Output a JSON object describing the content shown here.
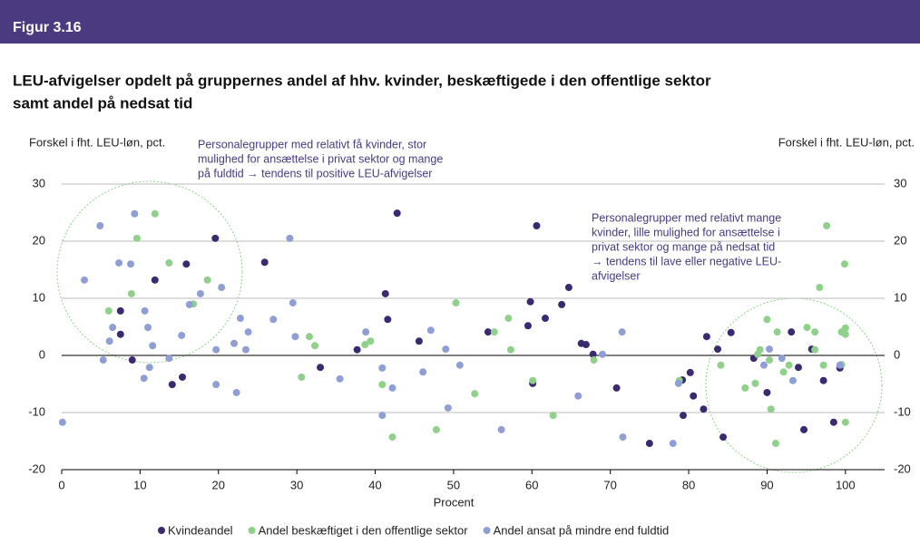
{
  "header": {
    "label": "Figur 3.16"
  },
  "chart_data": {
    "type": "scatter",
    "title": [
      "LEU-afvigelser opdelt på gruppernes andel af hhv. kvinder, beskæftigede i den offentlige sektor",
      "samt andel på nedsat tid"
    ],
    "y_label": "Forskel i fht. LEU-løn, pct.",
    "y2_label": "Forskel i fht. LEU-løn, pct.",
    "x_label": "Procent",
    "annotations": [
      [
        "Personalegrupper med relativt få kvinder, stor",
        "mulighed for ansættelse i privat sektor og mange",
        "på fuldtid → tendens til positive LEU-afvigelser"
      ],
      [
        "Personalegrupper med relativt mange",
        "kvinder, lille mulighed for ansættelse i",
        "privat sektor og mange på nedsat tid",
        "→ tendens til lave eller negative LEU-",
        "afvigelser"
      ]
    ],
    "xlim": [
      0,
      105
    ],
    "xticks": [
      0,
      10,
      20,
      30,
      40,
      50,
      60,
      70,
      80,
      90,
      100
    ],
    "ylim": [
      -20,
      30
    ],
    "yticks": [
      -20,
      -10,
      0,
      10,
      20,
      30
    ],
    "y2lim": [
      -20,
      30
    ],
    "y2ticks": [
      -20,
      -10,
      0,
      10,
      20,
      30
    ],
    "grid": true,
    "legend": "bottom",
    "series": [
      {
        "name": "Kvindeandel",
        "color": "#3b2a70",
        "x": [
          7.5,
          7.5,
          9.0,
          11.9,
          14.1,
          15.4,
          15.9,
          19.6,
          25.9,
          33,
          37.7,
          41.3,
          41.6,
          42.8,
          45.6,
          54.4,
          59.5,
          59.8,
          60.1,
          60.6,
          61.7,
          63.8,
          64.7,
          66.3,
          66.9,
          67.8,
          70.8,
          75,
          79.2,
          79.3,
          80.2,
          80.6,
          81.9,
          82.3,
          83.7,
          84.4,
          85.4,
          88.3,
          90,
          93.1,
          94,
          94.7,
          95.7,
          97.2,
          98.5,
          99.3
        ],
        "values": [
          7.8,
          3.7,
          -0.8,
          13.2,
          -5.1,
          -3.8,
          16,
          20.5,
          16.3,
          -2.1,
          1.0,
          10.8,
          6.3,
          24.9,
          2.5,
          4.1,
          5.2,
          9.4,
          -4.9,
          22.7,
          6.5,
          8.9,
          11.9,
          2.1,
          1.9,
          0.2,
          -5.7,
          -15.4,
          -4.3,
          -10.5,
          -3.0,
          -7.1,
          -9.4,
          3.3,
          1.1,
          -14.3,
          4.0,
          -0.5,
          -6.5,
          4.1,
          -2.1,
          -13,
          1.1,
          -4.4,
          -11.7,
          -2.2
        ]
      },
      {
        "name": "Andel beskæftiget i den offentlige sektor",
        "color": "#8fd18a",
        "x": [
          6.0,
          9.6,
          8.9,
          11.9,
          13.7,
          16.8,
          18.6,
          30.6,
          31.6,
          32.3,
          38.7,
          39.4,
          40.9,
          42.2,
          47.8,
          50.3,
          52.7,
          55.2,
          57,
          57.3,
          60.1,
          62.7,
          67.9,
          78.8,
          84.1,
          87.2,
          88.5,
          88.8,
          89.1,
          90,
          90.3,
          90.5,
          91.1,
          91.3,
          92.1,
          92.8,
          95.1,
          96.1,
          96.1,
          96.7,
          97.2,
          97.6,
          99.5,
          99.9,
          100,
          100,
          100,
          99.5
        ],
        "values": [
          7.8,
          20.5,
          10.8,
          24.8,
          16.2,
          9.0,
          13.2,
          -3.8,
          3.3,
          1.7,
          1.9,
          2.5,
          -5.1,
          -14.3,
          -13,
          9.2,
          -6.7,
          4.1,
          6.5,
          1.0,
          -4.4,
          -10.5,
          -0.8,
          -4.4,
          -1.7,
          -5.7,
          -4.9,
          0.2,
          1.0,
          6.3,
          -0.8,
          -9.4,
          -15.4,
          4.1,
          -2.9,
          -1.7,
          4.9,
          4.1,
          1.0,
          11.9,
          -1.7,
          22.7,
          4.1,
          16,
          4.8,
          -11.7,
          3.7,
          -1.6
        ]
      },
      {
        "name": "Andel ansat på mindre end fuldtid",
        "color": "#8f9fd6",
        "x": [
          0.1,
          2.9,
          4.9,
          5.3,
          6.1,
          6.5,
          7.3,
          8.8,
          9.3,
          10.5,
          10.6,
          11,
          11.2,
          11.6,
          13.7,
          15.3,
          16.3,
          17.7,
          19.7,
          19.7,
          20.4,
          22,
          22.3,
          22.8,
          23.5,
          23.8,
          27,
          29.1,
          29.5,
          29.8,
          35.5,
          38.8,
          40.9,
          40.9,
          42.2,
          46.1,
          47.1,
          49,
          49.3,
          50.8,
          56.1,
          65.9,
          69,
          71.6,
          71.5,
          78,
          78.7,
          89.6,
          90.3,
          91.9,
          93.3,
          99.3
        ],
        "values": [
          -11.7,
          13.2,
          22.7,
          -0.8,
          2.5,
          4.9,
          16.2,
          16,
          24.8,
          -4,
          7.8,
          4.9,
          -2.1,
          1.7,
          -0.5,
          3.5,
          8.9,
          10.8,
          1.0,
          -5.1,
          11.9,
          2.1,
          -6.5,
          6.5,
          1.0,
          4.1,
          6.3,
          20.5,
          9.2,
          3.3,
          -4.1,
          4.1,
          -2.2,
          -10.5,
          -5.7,
          -2.9,
          4.4,
          1.1,
          -9.2,
          -1.7,
          -13,
          -7.1,
          0.2,
          -14.3,
          4.1,
          -15.4,
          -4.9,
          -1.7,
          1.1,
          -0.5,
          -4.4,
          -1.7
        ]
      }
    ]
  }
}
